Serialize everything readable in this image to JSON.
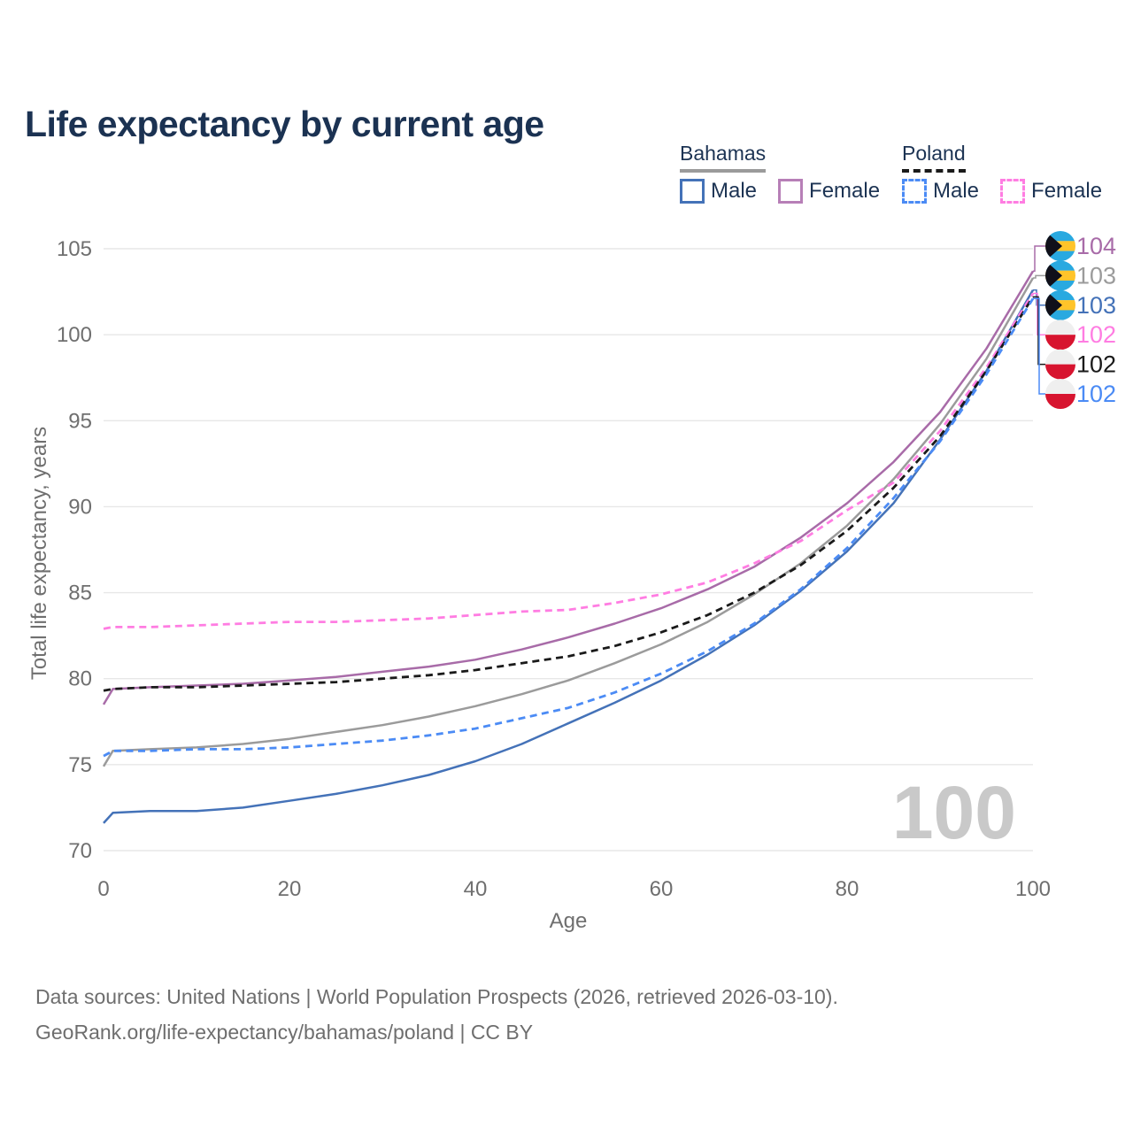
{
  "title": "Life expectancy by current age",
  "legend": {
    "groups": [
      {
        "label": "Bahamas",
        "style": "solid",
        "underline_color": "#9b9b9b",
        "items": [
          {
            "label": "Male",
            "color": "#4472b8",
            "dash": false
          },
          {
            "label": "Female",
            "color": "#b77fb7",
            "dash": false
          }
        ]
      },
      {
        "label": "Poland",
        "style": "dashed",
        "underline_color": "#1a1a1a",
        "items": [
          {
            "label": "Male",
            "color": "#4b8bf5",
            "dash": true
          },
          {
            "label": "Female",
            "color": "#ff7de2",
            "dash": true
          }
        ]
      }
    ]
  },
  "watermark": "100",
  "footer": {
    "line1": "Data sources: United Nations | World Population Prospects (2026, retrieved 2026-03-10).",
    "line2": "GeoRank.org/life-expectancy/bahamas/poland | CC BY"
  },
  "chart_data": {
    "type": "line",
    "title": "Life expectancy by current age",
    "xlabel": "Age",
    "ylabel": "Total life expectancy, years",
    "xlim": [
      0,
      100
    ],
    "ylim": [
      70,
      105
    ],
    "x_ticks": [
      0,
      20,
      40,
      60,
      80,
      100
    ],
    "y_ticks": [
      70,
      75,
      80,
      85,
      90,
      95,
      100,
      105
    ],
    "grid": "horizontal",
    "legend_position": "top-right",
    "hover_age_indicator": "100",
    "x": [
      0,
      1,
      5,
      10,
      15,
      20,
      25,
      30,
      35,
      40,
      45,
      50,
      55,
      60,
      65,
      70,
      75,
      80,
      85,
      90,
      95,
      100
    ],
    "series": [
      {
        "name": "Bahamas Female",
        "country": "Bahamas",
        "sex": "Female",
        "flag": "bahamas",
        "color": "#a86ba8",
        "dash": false,
        "end_label": "104",
        "values": [
          78.5,
          79.4,
          79.5,
          79.6,
          79.7,
          79.9,
          80.1,
          80.4,
          80.7,
          81.1,
          81.7,
          82.4,
          83.2,
          84.1,
          85.2,
          86.5,
          88.2,
          90.2,
          92.6,
          95.5,
          99.2,
          103.7
        ]
      },
      {
        "name": "Bahamas Total",
        "country": "Bahamas",
        "sex": "Both",
        "flag": "bahamas",
        "color": "#9b9b9b",
        "dash": false,
        "end_label": "103",
        "values": [
          74.9,
          75.8,
          75.9,
          76.0,
          76.2,
          76.5,
          76.9,
          77.3,
          77.8,
          78.4,
          79.1,
          79.9,
          80.9,
          82.0,
          83.3,
          84.9,
          86.7,
          88.9,
          91.6,
          94.8,
          98.6,
          103.3
        ]
      },
      {
        "name": "Bahamas Male",
        "country": "Bahamas",
        "sex": "Male",
        "flag": "bahamas",
        "color": "#4472b8",
        "dash": false,
        "end_label": "103",
        "values": [
          71.6,
          72.2,
          72.3,
          72.3,
          72.5,
          72.9,
          73.3,
          73.8,
          74.4,
          75.2,
          76.2,
          77.4,
          78.6,
          79.9,
          81.4,
          83.1,
          85.1,
          87.4,
          90.2,
          93.9,
          97.9,
          102.6
        ]
      },
      {
        "name": "Poland Female",
        "country": "Poland",
        "sex": "Female",
        "flag": "poland",
        "color": "#ff7de2",
        "dash": true,
        "end_label": "102",
        "values": [
          82.9,
          83.0,
          83.0,
          83.1,
          83.2,
          83.3,
          83.3,
          83.4,
          83.5,
          83.7,
          83.9,
          84.0,
          84.4,
          84.9,
          85.6,
          86.7,
          88.0,
          89.8,
          91.4,
          94.4,
          98.1,
          102.4
        ]
      },
      {
        "name": "Poland Total",
        "country": "Poland",
        "sex": "Both",
        "flag": "poland",
        "color": "#1a1a1a",
        "dash": true,
        "end_label": "102",
        "values": [
          79.3,
          79.4,
          79.5,
          79.5,
          79.6,
          79.7,
          79.8,
          80.0,
          80.2,
          80.5,
          80.9,
          81.3,
          81.9,
          82.7,
          83.7,
          85.0,
          86.6,
          88.6,
          91.1,
          94.1,
          97.9,
          102.2
        ]
      },
      {
        "name": "Poland Male",
        "country": "Poland",
        "sex": "Male",
        "flag": "poland",
        "color": "#4b8bf5",
        "dash": true,
        "end_label": "102",
        "values": [
          75.5,
          75.8,
          75.8,
          75.9,
          75.9,
          76.0,
          76.2,
          76.4,
          76.7,
          77.1,
          77.7,
          78.3,
          79.2,
          80.3,
          81.6,
          83.2,
          85.2,
          87.6,
          90.5,
          93.8,
          97.7,
          102.1
        ]
      }
    ],
    "flag_colors": {
      "bahamas_aqua": "#29a9e0",
      "bahamas_gold": "#ffc42a",
      "bahamas_black": "#10101a",
      "poland_white": "#efefef",
      "poland_red": "#d7142f"
    }
  }
}
